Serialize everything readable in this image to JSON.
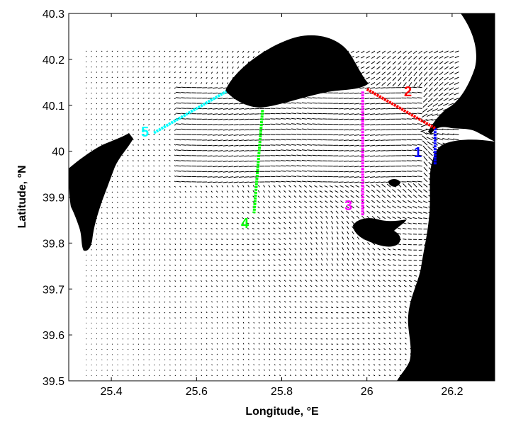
{
  "axes": {
    "xlabel": "Longitude, °E",
    "ylabel": "Latitude, °N",
    "xticks": [
      "25.4",
      "25.6",
      "25.8",
      "26",
      "26.2"
    ],
    "yticks": [
      "40.3",
      "40.2",
      "40.1",
      "40",
      "39.9",
      "39.8",
      "39.7",
      "39.6",
      "39.5"
    ]
  },
  "chart_data": {
    "type": "scatter",
    "title": "",
    "xlabel": "Longitude, °E",
    "ylabel": "Latitude, °N",
    "xlim": [
      25.3,
      26.3
    ],
    "ylim": [
      39.5,
      40.3
    ],
    "grid": false,
    "sections": [
      {
        "label": "1",
        "color": "#0000ff",
        "x": [
          26.16,
          26.16
        ],
        "y": [
          40.05,
          39.97
        ]
      },
      {
        "label": "2",
        "color": "#ff0000",
        "x": [
          26.0,
          26.16
        ],
        "y": [
          40.135,
          40.05
        ]
      },
      {
        "label": "3",
        "color": "#ff00ff",
        "x": [
          25.99,
          25.99
        ],
        "y": [
          40.13,
          39.86
        ]
      },
      {
        "label": "4",
        "color": "#00ff00",
        "x": [
          25.755,
          25.735
        ],
        "y": [
          40.09,
          39.865
        ]
      },
      {
        "label": "5",
        "color": "#00ffff",
        "x": [
          25.5,
          25.67
        ],
        "y": [
          40.04,
          40.13
        ]
      }
    ]
  }
}
